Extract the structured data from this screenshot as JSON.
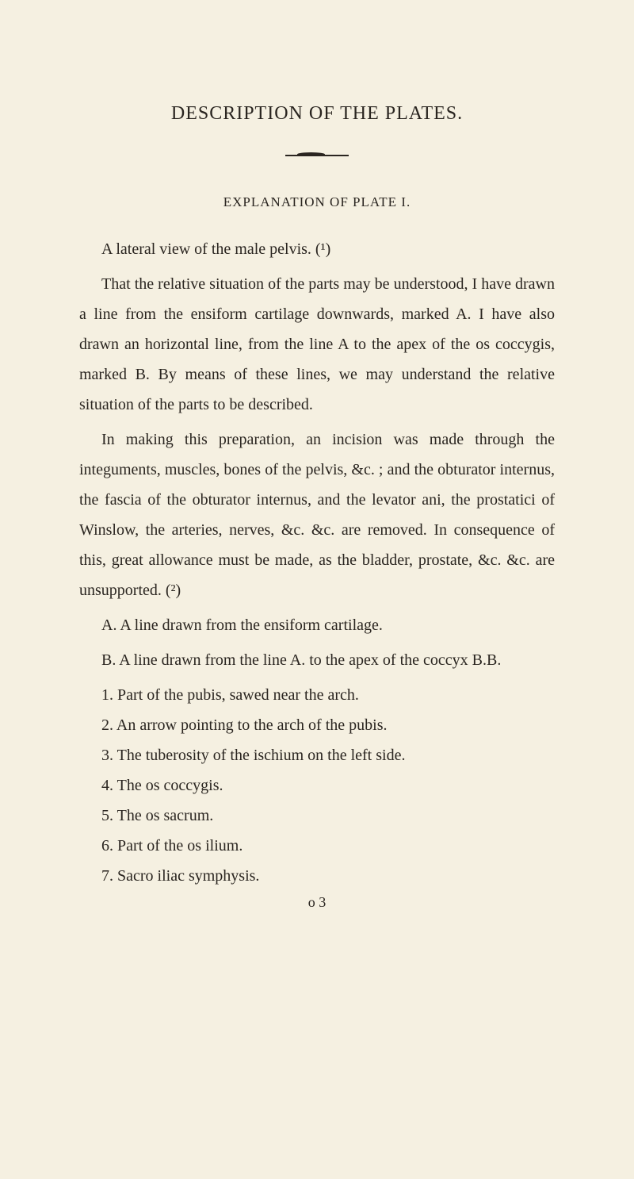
{
  "page": {
    "background_color": "#f5f0e1",
    "text_color": "#2a2520",
    "font_family": "Georgia, Times New Roman, serif",
    "body_fontsize": 20,
    "title_fontsize": 24,
    "subtitle_fontsize": 17,
    "line_height": 1.9
  },
  "title": "DESCRIPTION OF THE PLATES.",
  "subtitle": "EXPLANATION OF PLATE I.",
  "paragraphs": [
    "A lateral view of the male pelvis. (¹)",
    "That the relative situation of the parts may be understood, I have drawn a line from the ensiform cartilage downwards, marked A. I have also drawn an horizontal line, from the line A to the apex of the os coccygis, marked B. By means of these lines, we may understand the relative situation of the parts to be described.",
    "In making this preparation, an incision was made through the integuments, muscles, bones of the pelvis, &c. ; and the obturator internus, the fascia of the obturator internus, and the levator ani, the prostatici of Winslow, the arteries, nerves, &c. &c. are removed. In consequence of this, great allowance must be made, as the bladder, prostate, &c. &c. are unsupported. (²)",
    "A. A line drawn from the ensiform cartilage.",
    "B. A line drawn from the line A. to the apex of the coccyx B.B."
  ],
  "list_items": [
    "1. Part of the pubis, sawed near the arch.",
    "2. An arrow pointing to the arch of the pubis.",
    "3. The tuberosity of the ischium on the left side.",
    "4. The os coccygis.",
    "5. The os sacrum.",
    "6. Part of the os ilium.",
    "7. Sacro iliac symphysis."
  ],
  "footer_signature": "o 3"
}
